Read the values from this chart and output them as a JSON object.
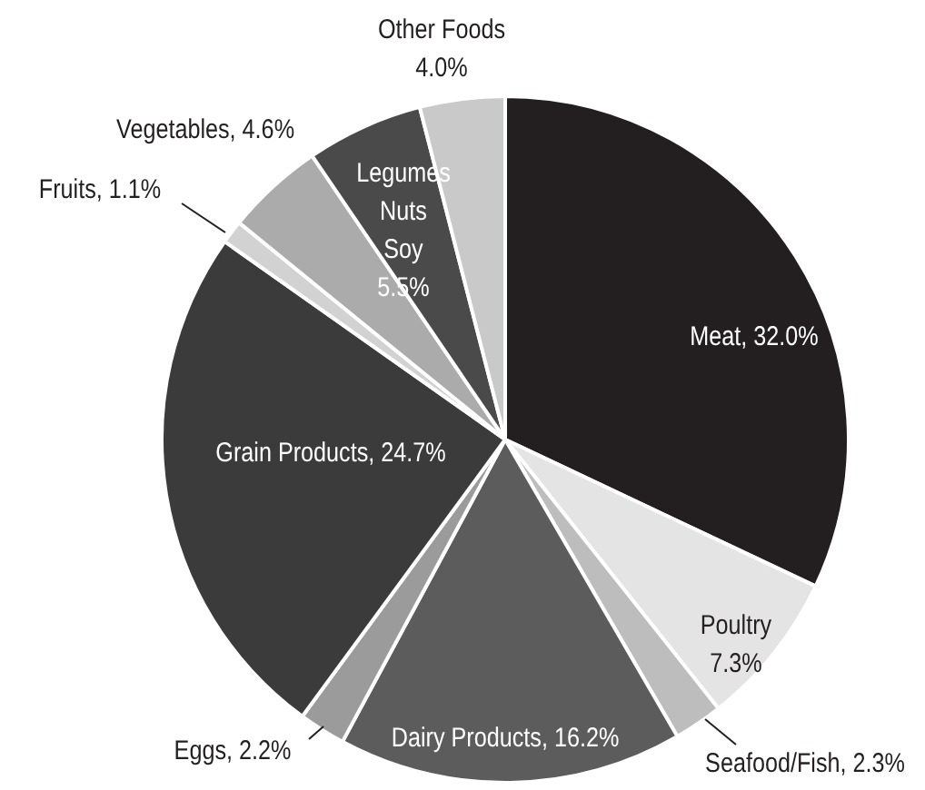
{
  "chart_data": {
    "type": "pie",
    "categories": [
      "Meat",
      "Poultry",
      "Seafood/Fish",
      "Dairy Products",
      "Eggs",
      "Grain Products",
      "Fruits",
      "Vegetables",
      "Legumes Nuts Soy",
      "Other Foods"
    ],
    "values": [
      32.0,
      7.3,
      2.3,
      16.2,
      2.2,
      24.7,
      1.1,
      4.6,
      5.5,
      4.0
    ],
    "value_labels": [
      "32.0%",
      "7.3%",
      "2.3%",
      "16.2%",
      "2.2%",
      "24.7%",
      "1.1%",
      "4.6%",
      "5.5%",
      "4.0%"
    ],
    "colors": [
      "#231f20",
      "#e4e4e4",
      "#bdbdbd",
      "#5c5c5c",
      "#9b9b9b",
      "#3b3b3b",
      "#d2d2d2",
      "#ababab",
      "#4a4a4a",
      "#c9c9c9"
    ],
    "legend": false
  }
}
